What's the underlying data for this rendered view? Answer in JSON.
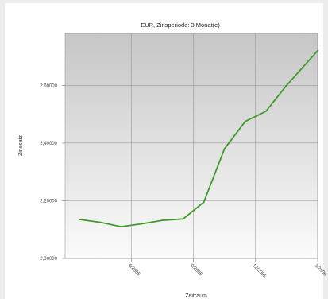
{
  "chart_data": {
    "type": "line",
    "title": "EUR, Zinsperiode: 3 Monat(e)",
    "xlabel": "Zeitraum",
    "ylabel": "Zinssatz",
    "y_ticks": [
      "2,00000",
      "2,20000",
      "2,40000",
      "2,60000"
    ],
    "ylim": [
      2.0,
      2.78
    ],
    "x_ticks": [
      "6/2005",
      "9/2005",
      "12/2005",
      "3/2006"
    ],
    "x_tick_positions": [
      2.5,
      5.5,
      8.5,
      11.5
    ],
    "xlim": [
      -0.7,
      11.5
    ],
    "grid": true,
    "line_color": "#3f9a2a",
    "series": [
      {
        "x": [
          0,
          1,
          2,
          3,
          4,
          5,
          6,
          7,
          8,
          9,
          10,
          11,
          11.5
        ],
        "values": [
          2.135,
          2.125,
          2.11,
          2.12,
          2.132,
          2.137,
          2.195,
          2.38,
          2.475,
          2.51,
          2.6,
          2.68,
          2.72
        ]
      }
    ]
  }
}
